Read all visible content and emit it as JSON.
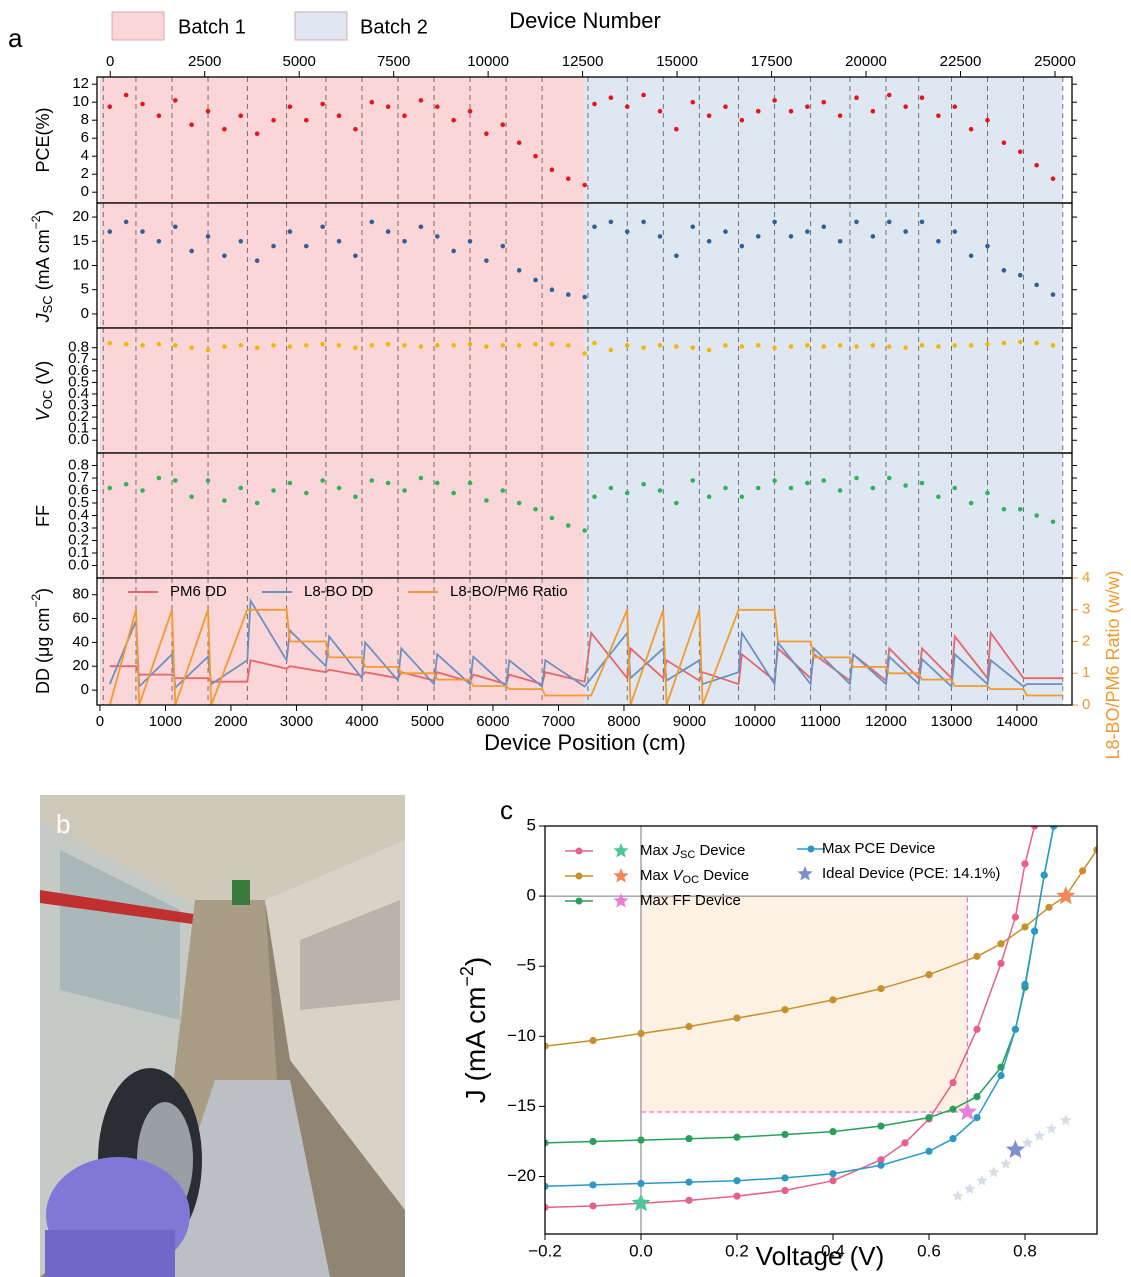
{
  "panel_labels": [
    "a",
    "b",
    "c"
  ],
  "panel_a": {
    "x2label": "Device Number",
    "x2lim": [
      -350,
      25450
    ],
    "x2ticks": [
      0,
      2500,
      5000,
      7500,
      10000,
      12500,
      15000,
      17500,
      20000,
      22500,
      25000
    ],
    "xlabel": "Device Position (cm)",
    "xlim": [
      -45,
      14840
    ],
    "xticks": [
      0,
      1000,
      2000,
      3000,
      4000,
      5000,
      6000,
      7000,
      8000,
      9000,
      10000,
      11000,
      12000,
      13000,
      14000
    ],
    "batches": [
      {
        "name": "Batch 1",
        "color": "#fbd6d8",
        "range": [
          0,
          7400
        ]
      },
      {
        "name": "Batch 2",
        "color": "#dfe8f2",
        "range": [
          7400,
          14700
        ]
      }
    ],
    "dividers": [
      50,
      550,
      1100,
      1650,
      2250,
      2850,
      3450,
      4000,
      4550,
      5100,
      5650,
      6200,
      6750,
      7450,
      8050,
      8600,
      9150,
      9750,
      10300,
      10850,
      11450,
      12000,
      12500,
      13000,
      13550,
      14100,
      14700
    ]
  },
  "chart_data": [
    {
      "type": "scatter",
      "ylabel": "PCE(%)",
      "color": "#e8141c",
      "ylim": [
        -1.2,
        12.8
      ],
      "yticks": [
        0,
        2,
        4,
        6,
        8,
        10,
        12
      ],
      "x": [
        150,
        400,
        650,
        900,
        1150,
        1400,
        1650,
        1900,
        2150,
        2400,
        2650,
        2900,
        3150,
        3400,
        3650,
        3900,
        4150,
        4400,
        4650,
        4900,
        5150,
        5400,
        5650,
        5900,
        6150,
        6400,
        6650,
        6900,
        7150,
        7400,
        7550,
        7800,
        8050,
        8300,
        8550,
        8800,
        9050,
        9300,
        9550,
        9800,
        10050,
        10300,
        10550,
        10800,
        11050,
        11300,
        11550,
        11800,
        12050,
        12300,
        12550,
        12800,
        13050,
        13300,
        13550,
        13800,
        14050,
        14300,
        14550
      ],
      "values": [
        9.5,
        10.8,
        9.8,
        8.5,
        10.2,
        7.5,
        9.0,
        7.0,
        8.5,
        6.5,
        8.0,
        9.5,
        8.0,
        9.8,
        8.5,
        7.0,
        10.0,
        9.5,
        8.5,
        10.2,
        9.5,
        8.0,
        9.0,
        6.5,
        7.5,
        5.5,
        4.0,
        2.5,
        1.5,
        0.8,
        9.8,
        10.5,
        9.5,
        10.8,
        9.0,
        7.0,
        10.0,
        8.5,
        9.5,
        8.0,
        9.0,
        10.2,
        9.0,
        9.5,
        10.0,
        8.5,
        10.5,
        9.0,
        10.8,
        9.5,
        10.5,
        8.5,
        9.5,
        7.0,
        8.0,
        5.5,
        4.5,
        3.0,
        1.5
      ]
    },
    {
      "type": "scatter",
      "ylabel": [
        "J",
        "SC",
        " (mA cm",
        "−2",
        ")"
      ],
      "color": "#2e5f99",
      "ylim": [
        -2.9,
        22.9
      ],
      "yticks": [
        0,
        5,
        10,
        15,
        20
      ],
      "x": [
        150,
        400,
        650,
        900,
        1150,
        1400,
        1650,
        1900,
        2150,
        2400,
        2650,
        2900,
        3150,
        3400,
        3650,
        3900,
        4150,
        4400,
        4650,
        4900,
        5150,
        5400,
        5650,
        5900,
        6150,
        6400,
        6650,
        6900,
        7150,
        7400,
        7550,
        7800,
        8050,
        8300,
        8550,
        8800,
        9050,
        9300,
        9550,
        9800,
        10050,
        10300,
        10550,
        10800,
        11050,
        11300,
        11550,
        11800,
        12050,
        12300,
        12550,
        12800,
        13050,
        13300,
        13550,
        13800,
        14050,
        14300,
        14550
      ],
      "values": [
        17,
        19,
        17,
        15,
        18,
        13,
        16,
        12,
        15,
        11,
        14,
        17,
        14,
        18,
        15,
        12,
        19,
        17,
        15,
        18,
        16,
        13,
        15,
        11,
        14,
        9,
        7,
        5,
        4,
        3.5,
        18,
        19,
        17,
        19,
        16,
        12,
        18,
        15,
        17,
        14,
        16,
        19,
        16,
        17,
        18,
        15,
        19,
        16,
        19,
        17,
        19,
        15,
        17,
        12,
        14,
        9,
        8,
        6,
        4
      ]
    },
    {
      "type": "scatter",
      "ylabel": [
        "V",
        "OC",
        " (V)"
      ],
      "color": "#f2b705",
      "ylim": [
        -0.11,
        0.97
      ],
      "yticks": [
        {
          "value": 0,
          "label": "0.0"
        },
        0.1,
        0.2,
        0.3,
        0.4,
        0.5,
        0.6,
        0.7,
        0.8
      ],
      "x": [
        150,
        400,
        650,
        900,
        1150,
        1400,
        1650,
        1900,
        2150,
        2400,
        2650,
        2900,
        3150,
        3400,
        3650,
        3900,
        4150,
        4400,
        4650,
        4900,
        5150,
        5400,
        5650,
        5900,
        6150,
        6400,
        6650,
        6900,
        7150,
        7400,
        7550,
        7800,
        8050,
        8300,
        8550,
        8800,
        9050,
        9300,
        9550,
        9800,
        10050,
        10300,
        10550,
        10800,
        11050,
        11300,
        11550,
        11800,
        12050,
        12300,
        12550,
        12800,
        13050,
        13300,
        13550,
        13800,
        14050,
        14300,
        14550
      ],
      "values": [
        0.84,
        0.83,
        0.82,
        0.83,
        0.82,
        0.8,
        0.78,
        0.81,
        0.82,
        0.8,
        0.82,
        0.81,
        0.82,
        0.83,
        0.82,
        0.8,
        0.82,
        0.83,
        0.82,
        0.81,
        0.82,
        0.82,
        0.83,
        0.81,
        0.82,
        0.82,
        0.83,
        0.83,
        0.82,
        0.75,
        0.84,
        0.78,
        0.82,
        0.8,
        0.82,
        0.81,
        0.8,
        0.78,
        0.82,
        0.81,
        0.82,
        0.8,
        0.81,
        0.82,
        0.81,
        0.82,
        0.81,
        0.82,
        0.81,
        0.8,
        0.82,
        0.81,
        0.82,
        0.82,
        0.83,
        0.84,
        0.85,
        0.84,
        0.82
      ]
    },
    {
      "type": "scatter",
      "ylabel": "FF",
      "color": "#2eb35a",
      "ylim": [
        -0.1,
        0.9
      ],
      "yticks": [
        {
          "value": 0,
          "label": "0.0"
        },
        0.1,
        0.2,
        0.3,
        0.4,
        0.5,
        0.6,
        0.7,
        0.8
      ],
      "x": [
        150,
        400,
        650,
        900,
        1150,
        1400,
        1650,
        1900,
        2150,
        2400,
        2650,
        2900,
        3150,
        3400,
        3650,
        3900,
        4150,
        4400,
        4650,
        4900,
        5150,
        5400,
        5650,
        5900,
        6150,
        6400,
        6650,
        6900,
        7150,
        7400,
        7550,
        7800,
        8050,
        8300,
        8550,
        8800,
        9050,
        9300,
        9550,
        9800,
        10050,
        10300,
        10550,
        10800,
        11050,
        11300,
        11550,
        11800,
        12050,
        12300,
        12550,
        12800,
        13050,
        13300,
        13550,
        13800,
        14050,
        14300,
        14550
      ],
      "values": [
        0.62,
        0.65,
        0.6,
        0.7,
        0.68,
        0.55,
        0.68,
        0.52,
        0.62,
        0.5,
        0.6,
        0.66,
        0.58,
        0.68,
        0.62,
        0.55,
        0.68,
        0.66,
        0.6,
        0.7,
        0.66,
        0.58,
        0.66,
        0.52,
        0.6,
        0.5,
        0.45,
        0.38,
        0.32,
        0.28,
        0.55,
        0.62,
        0.58,
        0.65,
        0.6,
        0.5,
        0.68,
        0.55,
        0.62,
        0.55,
        0.62,
        0.68,
        0.62,
        0.66,
        0.68,
        0.6,
        0.7,
        0.62,
        0.7,
        0.64,
        0.66,
        0.55,
        0.62,
        0.5,
        0.58,
        0.45,
        0.45,
        0.4,
        0.35
      ]
    },
    {
      "type": "line",
      "ylabel": [
        "DD (μg cm",
        "−2",
        ")"
      ],
      "y2label": "L8-BO/PM6 Ratio (w/w)",
      "ylim": [
        -12.5,
        94
      ],
      "yticks": [
        0,
        20,
        40,
        60,
        80
      ],
      "y2lim": [
        0,
        4
      ],
      "y2ticks": [
        0,
        1,
        2,
        3,
        4
      ],
      "x": [
        150,
        550,
        600,
        1100,
        1150,
        1650,
        1700,
        2250,
        2300,
        2850,
        2900,
        3450,
        3500,
        4000,
        4050,
        4550,
        4600,
        5100,
        5150,
        5650,
        5700,
        6200,
        6250,
        6750,
        6800,
        7400,
        7500,
        8050,
        8100,
        8600,
        8650,
        9150,
        9200,
        9750,
        9800,
        10300,
        10350,
        10850,
        10900,
        11450,
        11500,
        12000,
        12050,
        12500,
        12550,
        13000,
        13050,
        13550,
        13600,
        14100,
        14150,
        14700
      ],
      "series": [
        {
          "name": "PM6 DD",
          "color": "#e8666a",
          "values": [
            20,
            20,
            13,
            13,
            10,
            10,
            7,
            7,
            25,
            18,
            20,
            15,
            17,
            12,
            15,
            10,
            15,
            8,
            15,
            7,
            13,
            5,
            13,
            5,
            15,
            7,
            48,
            10,
            35,
            10,
            25,
            8,
            15,
            5,
            30,
            8,
            35,
            10,
            30,
            8,
            30,
            8,
            35,
            10,
            35,
            10,
            45,
            10,
            48,
            10,
            10,
            10
          ]
        },
        {
          "name": "L8-BO DD",
          "color": "#6b91c4",
          "values": [
            5,
            58,
            3,
            30,
            2,
            28,
            5,
            25,
            75,
            25,
            50,
            20,
            45,
            10,
            40,
            8,
            35,
            5,
            30,
            5,
            28,
            3,
            25,
            3,
            25,
            3,
            10,
            48,
            10,
            35,
            8,
            25,
            5,
            15,
            48,
            5,
            40,
            5,
            35,
            5,
            30,
            5,
            28,
            5,
            26,
            3,
            30,
            5,
            25,
            3,
            5,
            5
          ]
        },
        {
          "name": "L8-BO/PM6 Ratio",
          "color": "#f39a2e",
          "axis": "y2",
          "values": [
            0,
            3,
            0,
            3,
            0,
            3,
            0,
            3,
            3,
            3,
            2,
            2,
            1.5,
            1.5,
            1.2,
            1.2,
            1,
            1,
            0.8,
            0.8,
            0.6,
            0.6,
            0.5,
            0.5,
            0.3,
            0.3,
            0.3,
            3,
            0,
            3,
            0,
            3,
            0,
            3,
            3,
            3,
            2,
            2,
            1.5,
            1.5,
            1.2,
            1.2,
            1,
            1,
            0.8,
            0.8,
            0.6,
            0.6,
            0.5,
            0.5,
            0.3,
            0.3
          ]
        }
      ]
    },
    {
      "type": "line",
      "xlabel": "Voltage (V)",
      "ylabel": [
        "J (mA cm",
        "−2",
        ")"
      ],
      "xlim": [
        -0.2,
        0.95
      ],
      "ylim": [
        -24.1,
        5
      ],
      "xticks": [
        {
          "value": -0.2,
          "label": "−0.2"
        },
        {
          "value": 0,
          "label": "0.0"
        },
        0.2,
        0.4,
        0.6,
        0.8
      ],
      "yticks": [
        {
          "value": -20,
          "label": "−20"
        },
        {
          "value": -15,
          "label": "−15"
        },
        {
          "value": -10,
          "label": "−10"
        },
        {
          "value": -5,
          "label": "−5"
        },
        0,
        5
      ],
      "zero_lines": true,
      "power_box": {
        "x": 0.68,
        "y": -15.4,
        "fill": "#fdf1e3",
        "line_color": "#ee6fd3"
      },
      "series": [
        {
          "name": [
            "Max ",
            "J",
            "SC",
            " Device"
          ],
          "color": "#e8608a",
          "x": [
            -0.2,
            -0.1,
            0,
            0.1,
            0.2,
            0.3,
            0.4,
            0.5,
            0.55,
            0.6,
            0.65,
            0.7,
            0.75,
            0.78,
            0.8,
            0.82
          ],
          "values": [
            -22.2,
            -22.1,
            -21.9,
            -21.7,
            -21.4,
            -21,
            -20.3,
            -18.8,
            -17.6,
            -15.9,
            -13.3,
            -9.5,
            -4.8,
            -1.5,
            2.3,
            5
          ]
        },
        {
          "name": [
            "Max ",
            "V",
            "OC",
            " Device"
          ],
          "color": "#c8902a",
          "x": [
            -0.2,
            -0.1,
            0,
            0.1,
            0.2,
            0.3,
            0.4,
            0.5,
            0.6,
            0.7,
            0.75,
            0.8,
            0.85,
            0.885,
            0.92,
            0.95
          ],
          "values": [
            -10.7,
            -10.3,
            -9.8,
            -9.3,
            -8.7,
            -8.1,
            -7.4,
            -6.6,
            -5.6,
            -4.3,
            -3.4,
            -2.2,
            -0.8,
            0,
            1.8,
            3.3
          ]
        },
        {
          "name": "Max FF Device",
          "color": "#27a05a",
          "x": [
            -0.2,
            -0.1,
            0,
            0.1,
            0.2,
            0.3,
            0.4,
            0.5,
            0.6,
            0.65,
            0.7,
            0.75,
            0.78,
            0.8,
            0.82,
            0.84,
            0.86
          ],
          "values": [
            -17.6,
            -17.5,
            -17.4,
            -17.3,
            -17.2,
            -17,
            -16.8,
            -16.4,
            -15.8,
            -15.2,
            -14.3,
            -12.2,
            -9.5,
            -6.5,
            -2.5,
            1.5,
            5
          ]
        },
        {
          "name": "Max PCE Device",
          "color": "#2b98c8",
          "x": [
            -0.2,
            -0.1,
            0,
            0.1,
            0.2,
            0.3,
            0.4,
            0.5,
            0.6,
            0.65,
            0.7,
            0.75,
            0.78,
            0.8,
            0.82,
            0.84,
            0.86
          ],
          "values": [
            -20.7,
            -20.6,
            -20.5,
            -20.4,
            -20.3,
            -20.1,
            -19.8,
            -19.2,
            -18.2,
            -17.3,
            -15.8,
            -12.8,
            -9.5,
            -6.3,
            -2.5,
            1.5,
            5
          ]
        }
      ],
      "stars": [
        {
          "x": 0,
          "y": -21.9,
          "color": "#4fc79b"
        },
        {
          "x": 0.885,
          "y": 0,
          "color": "#f2875a"
        },
        {
          "x": 0.68,
          "y": -15.4,
          "color": "#e681d8"
        }
      ],
      "ideal": {
        "name": "Ideal Device (PCE: 14.1%)",
        "color": "#7f8fcc",
        "trail_color": "#d8dcea",
        "star": {
          "x": 0.78,
          "y": -18.1
        },
        "x": [
          0.66,
          0.685,
          0.71,
          0.735,
          0.76,
          0.805,
          0.83,
          0.855,
          0.885
        ],
        "values": [
          -21.4,
          -20.9,
          -20.3,
          -19.7,
          -19.1,
          -17.6,
          -17.1,
          -16.6,
          -16.0
        ]
      }
    }
  ]
}
